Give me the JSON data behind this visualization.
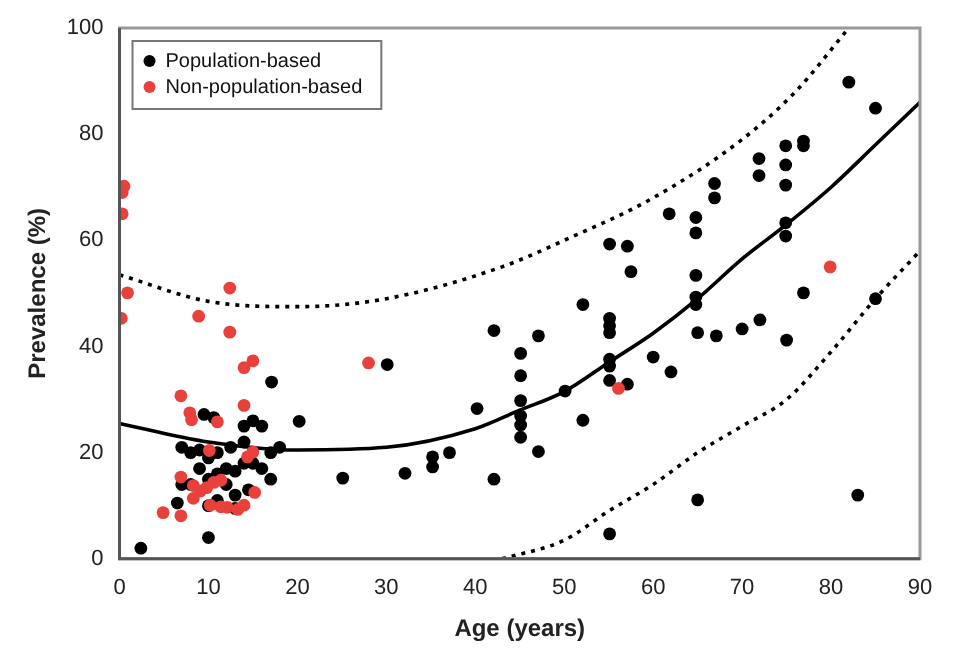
{
  "chart_data": {
    "type": "scatter",
    "xlabel": "Age (years)",
    "ylabel": "Prevalence (%)",
    "xlim": [
      0,
      90
    ],
    "ylim": [
      0,
      100
    ],
    "xticks": [
      0,
      10,
      20,
      30,
      40,
      50,
      60,
      70,
      80,
      90
    ],
    "yticks": [
      0,
      20,
      40,
      60,
      80,
      100
    ],
    "grid": false,
    "legend": "top left",
    "marker": "circle",
    "series": [
      {
        "name": "Population-based",
        "color": "#000000",
        "x": [
          2.4,
          9.5,
          10.6,
          10,
          17.1,
          20.2,
          25.1,
          30.1,
          32.1,
          35.2,
          35.2,
          37.1,
          40.2,
          42.1,
          42.1,
          7,
          8,
          9,
          7,
          6.5,
          8,
          9,
          10,
          10,
          11,
          11,
          12,
          12,
          12.5,
          13,
          13,
          14,
          14,
          14,
          14.5,
          15,
          15,
          16,
          16,
          17,
          17,
          18,
          11,
          13,
          10,
          82,
          85,
          71.9,
          71.9,
          74.9,
          74.9,
          74.9,
          76.9,
          76.9,
          66.9,
          66.9,
          61.8,
          64.8,
          64.8,
          55.1,
          57.1,
          57.5,
          64.8,
          74.9,
          74.9,
          64.8,
          64.8,
          52.1,
          76.9,
          85,
          55.1,
          55.1,
          55.1,
          55.1,
          55.1,
          55.1,
          57.1,
          45.1,
          45.1,
          45.1,
          45.1,
          45.1,
          45.1,
          47.1,
          47.1,
          50.1,
          52.1,
          60,
          62,
          65,
          67.1,
          70,
          72,
          75,
          65,
          55.1,
          83
        ],
        "values": [
          2,
          27.2,
          26.6,
          4,
          33.3,
          25.9,
          15.2,
          36.6,
          16.1,
          19.2,
          17.3,
          20,
          28.3,
          43,
          15,
          21,
          20,
          20.5,
          14,
          10.5,
          14,
          17,
          19,
          15,
          16,
          20,
          17,
          14,
          21,
          16.5,
          12,
          25,
          22,
          18,
          13,
          26,
          18,
          25,
          17,
          20,
          15,
          21,
          11,
          9.5,
          10,
          89.8,
          84.9,
          75.4,
          72.2,
          77.8,
          74.2,
          70.4,
          78.7,
          77.8,
          70.7,
          68,
          65,
          64.3,
          61.4,
          59.3,
          58.9,
          54.1,
          53.4,
          63.3,
          60.8,
          49.3,
          47.9,
          47.9,
          50.1,
          49,
          45.3,
          43.9,
          42.6,
          37.6,
          36.3,
          33.6,
          32.9,
          38.7,
          34.5,
          29.8,
          26.9,
          25.2,
          22.9,
          42,
          20.2,
          31.6,
          26.1,
          38,
          35.2,
          42.6,
          42,
          43.3,
          45,
          41.2,
          11.1,
          4.7,
          12
        ]
      },
      {
        "name": "Non-population-based",
        "color": "#e8413c",
        "x": [
          0.5,
          0.3,
          0.3,
          0.9,
          12.4,
          8.9,
          0.2,
          12.4,
          15,
          14,
          28,
          6.9,
          7.9,
          8.1,
          11,
          14,
          6.9,
          4.9,
          6.9,
          8.3,
          9.1,
          9.8,
          10.6,
          8.3,
          10.2,
          11.4,
          12.1,
          13.3,
          14,
          15.2,
          14.4,
          15,
          10.1,
          11.4,
          79.9,
          56.1
        ],
        "values": [
          70.2,
          69,
          65,
          50.1,
          51,
          45.7,
          45.3,
          42.7,
          37.3,
          36,
          36.9,
          30.7,
          27.5,
          26.2,
          25.8,
          28.9,
          15.4,
          8.7,
          8.1,
          13.8,
          12.8,
          13.4,
          14.4,
          11.4,
          10.1,
          9.8,
          9.7,
          9.3,
          10.1,
          12.5,
          19.2,
          20.1,
          20.4,
          14.8,
          55,
          32.1
        ]
      },
      {
        "type": "line",
        "color": "#000000",
        "line_style": "solid",
        "marker": "none",
        "x": [
          0,
          10,
          20,
          30,
          40,
          45,
          50,
          55,
          60,
          65,
          70,
          75,
          80,
          85,
          90
        ],
        "values": [
          25.5,
          22,
          20.5,
          21,
          24.5,
          28,
          31.5,
          37,
          42.5,
          49,
          56.5,
          63,
          70,
          78,
          86
        ]
      },
      {
        "type": "line",
        "color": "#000000",
        "line_style": "dotted",
        "marker": "none",
        "x": [
          0,
          10,
          20,
          30,
          43,
          50,
          60,
          70,
          76,
          82
        ],
        "values": [
          53.5,
          48.5,
          47.5,
          49,
          55,
          60,
          68,
          79,
          88,
          100
        ]
      },
      {
        "type": "line",
        "color": "#000000",
        "line_style": "dotted",
        "marker": "none",
        "x": [
          43,
          50,
          55,
          60,
          65,
          70,
          75,
          80,
          85,
          90
        ],
        "values": [
          0,
          3.5,
          9,
          14,
          20,
          25,
          30,
          39,
          49,
          58
        ]
      }
    ]
  }
}
